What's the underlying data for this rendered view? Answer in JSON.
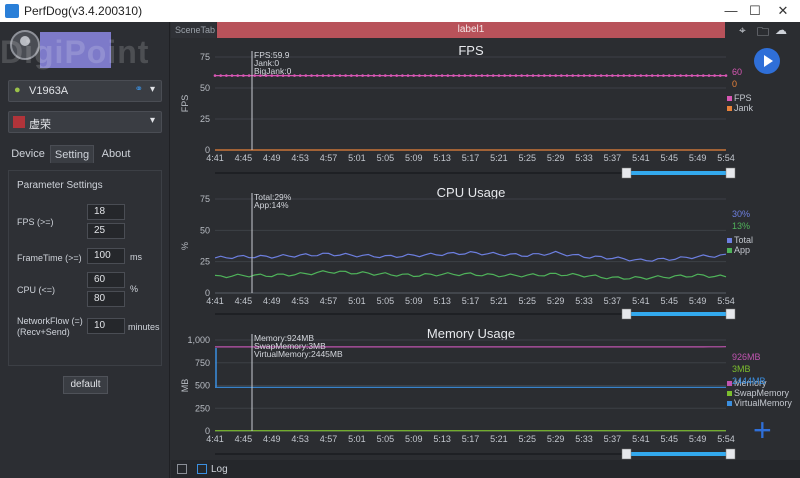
{
  "window": {
    "title": "PerfDog(v3.4.200310)",
    "minimize": "—",
    "maximize": "☐",
    "close": "✕"
  },
  "sidebar": {
    "watermark": "DigiPoint",
    "device": {
      "label": "V1963A",
      "caret": "▾"
    },
    "app": {
      "label": "虚荣",
      "caret": "▾"
    },
    "tabs": [
      "Device",
      "Setting",
      "About"
    ],
    "active_tab": "Setting",
    "params": {
      "title": "Parameter Settings",
      "fps_label": "FPS (>=)",
      "fps_value_1": "18",
      "fps_value_2": "25",
      "frametime_label": "FrameTime (>=)",
      "frametime_value": "100",
      "frametime_unit": "ms",
      "cpu_label": "CPU (<=)",
      "cpu_value_1": "60",
      "cpu_value_2": "80",
      "cpu_unit": "%",
      "network_label_1": "NetworkFlow (=)",
      "network_label_2": "(Recv+Send)",
      "network_value": "10",
      "network_unit": "minutes"
    },
    "default_button": "default"
  },
  "main": {
    "scene_tab": "SceneTab",
    "label_tab": "label1",
    "bottom_log": "Log",
    "icons": [
      "location-icon",
      "folder-icon",
      "cloud-icon",
      "play-icon",
      "plus-icon"
    ]
  },
  "colors": {
    "fps": "#d857b4",
    "jank": "#e8823a",
    "total": "#6d7fe0",
    "app": "#4fb35a",
    "memory": "#c054b0",
    "swap": "#7cbe2e",
    "virtual": "#3b8fe0",
    "cursor": "#c9ccd2",
    "slider": "#33a9ee"
  },
  "chart_data": [
    {
      "type": "line",
      "title": "FPS",
      "ylabel": "FPS",
      "ylim": [
        0,
        75
      ],
      "yticks": [
        "0",
        "25",
        "50",
        "75"
      ],
      "x": [
        "4:41",
        "4:45",
        "4:49",
        "4:53",
        "4:57",
        "5:01",
        "5:05",
        "5:09",
        "5:13",
        "5:17",
        "5:21",
        "5:25",
        "5:29",
        "5:33",
        "5:37",
        "5:41",
        "5:45",
        "5:49",
        "5:54"
      ],
      "cursor_readout": [
        "FPS:59.9",
        "Jank:0",
        "BigJank:0"
      ],
      "series": [
        {
          "name": "FPS",
          "color": "#d857b4",
          "values": [
            60,
            60,
            60,
            60,
            60,
            60,
            60,
            60,
            60,
            60,
            60,
            60,
            60,
            60,
            60,
            60,
            60,
            60,
            60
          ],
          "last": "60"
        },
        {
          "name": "Jank",
          "color": "#e8823a",
          "values": [
            0,
            0,
            0,
            0,
            0,
            0,
            0,
            0,
            0,
            0,
            0,
            0,
            0,
            0,
            0,
            0,
            0,
            0,
            0
          ],
          "last": "0"
        }
      ]
    },
    {
      "type": "line",
      "title": "CPU Usage",
      "ylabel": "%",
      "ylim": [
        0,
        75
      ],
      "yticks": [
        "0",
        "25",
        "50",
        "75"
      ],
      "x": [
        "4:41",
        "4:45",
        "4:49",
        "4:53",
        "4:57",
        "5:01",
        "5:05",
        "5:09",
        "5:13",
        "5:17",
        "5:21",
        "5:25",
        "5:29",
        "5:33",
        "5:37",
        "5:41",
        "5:45",
        "5:49",
        "5:54"
      ],
      "cursor_readout": [
        "Total:29%",
        "App:14%"
      ],
      "series": [
        {
          "name": "Total",
          "color": "#6d7fe0",
          "values": [
            28,
            29,
            29,
            30,
            31,
            30,
            29,
            30,
            31,
            32,
            31,
            30,
            32,
            29,
            28,
            26,
            27,
            29,
            30
          ],
          "last": "30%"
        },
        {
          "name": "App",
          "color": "#4fb35a",
          "values": [
            13,
            14,
            14,
            15,
            17,
            16,
            15,
            14,
            15,
            15,
            14,
            14,
            15,
            14,
            12,
            12,
            13,
            14,
            13
          ],
          "last": "13%"
        }
      ]
    },
    {
      "type": "line",
      "title": "Memory Usage",
      "ylabel": "MB",
      "ylim": [
        0,
        1000
      ],
      "yticks": [
        "0",
        "250",
        "500",
        "750",
        "1,000"
      ],
      "x": [
        "4:41",
        "4:45",
        "4:49",
        "4:53",
        "4:57",
        "5:01",
        "5:05",
        "5:09",
        "5:13",
        "5:17",
        "5:21",
        "5:25",
        "5:29",
        "5:33",
        "5:37",
        "5:41",
        "5:45",
        "5:49",
        "5:54"
      ],
      "cursor_readout": [
        "Memory:924MB",
        "SwapMemory:3MB",
        "VirtualMemory:2445MB"
      ],
      "series": [
        {
          "name": "Memory",
          "color": "#c054b0",
          "values": [
            924,
            924,
            924,
            924,
            924,
            924,
            924,
            924,
            924,
            924,
            924,
            924,
            924,
            924,
            924,
            924,
            924,
            924,
            926
          ],
          "last": "926MB"
        },
        {
          "name": "SwapMemory",
          "color": "#7cbe2e",
          "values": [
            3,
            3,
            3,
            3,
            3,
            3,
            3,
            3,
            3,
            3,
            3,
            3,
            3,
            3,
            3,
            3,
            3,
            3,
            3
          ],
          "last": "3MB"
        },
        {
          "name": "VirtualMemory",
          "color": "#3b8fe0",
          "values": [
            2445,
            2445,
            2445,
            2445,
            2445,
            2445,
            2445,
            2445,
            2445,
            2445,
            2445,
            2445,
            2445,
            2445,
            2445,
            2445,
            2445,
            2445,
            2444
          ],
          "last": "2444MB",
          "display_values": [
            480,
            480,
            480,
            480,
            480,
            480,
            480,
            480,
            480,
            480,
            480,
            480,
            480,
            480,
            480,
            480,
            480,
            480,
            480
          ]
        }
      ]
    }
  ]
}
